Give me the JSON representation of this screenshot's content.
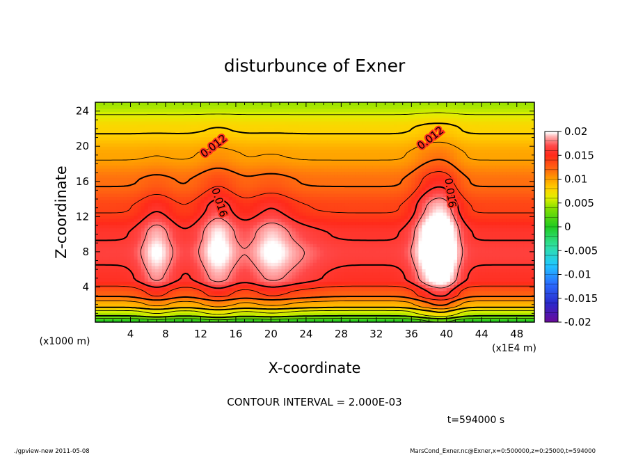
{
  "chart_data": {
    "type": "heatmap",
    "title": "disturbunce of Exner",
    "xlabel": "X-coordinate",
    "ylabel": "Z-coordinate",
    "x_unit_label": "(x1E4 m)",
    "y_unit_label": "(x1000 m)",
    "xlim": [
      0,
      50
    ],
    "ylim": [
      0,
      25
    ],
    "x_ticks": [
      4,
      8,
      12,
      16,
      20,
      24,
      28,
      32,
      36,
      40,
      44,
      48
    ],
    "y_ticks": [
      4,
      8,
      12,
      16,
      20,
      24
    ],
    "colorbar": {
      "min": -0.02,
      "max": 0.02,
      "ticks": [
        {
          "value": 0.02,
          "label": "0.02"
        },
        {
          "value": 0.015,
          "label": "0.015"
        },
        {
          "value": 0.01,
          "label": "0.01"
        },
        {
          "value": 0.005,
          "label": "0.005"
        },
        {
          "value": 0,
          "label": "0"
        },
        {
          "value": -0.005,
          "label": "-0.005"
        },
        {
          "value": -0.01,
          "label": "-0.01"
        },
        {
          "value": -0.015,
          "label": "-0.015"
        },
        {
          "value": -0.02,
          "label": "-0.02"
        }
      ],
      "stops": [
        {
          "value": -0.02,
          "color": "#6a0a9a"
        },
        {
          "value": -0.016,
          "color": "#2a2acc"
        },
        {
          "value": -0.012,
          "color": "#2a6cff"
        },
        {
          "value": -0.008,
          "color": "#20c8ff"
        },
        {
          "value": -0.004,
          "color": "#30e0a0"
        },
        {
          "value": 0.0,
          "color": "#20cc20"
        },
        {
          "value": 0.004,
          "color": "#88e000"
        },
        {
          "value": 0.006,
          "color": "#e0f000"
        },
        {
          "value": 0.008,
          "color": "#ffd200"
        },
        {
          "value": 0.01,
          "color": "#ffa000"
        },
        {
          "value": 0.012,
          "color": "#ff6a10"
        },
        {
          "value": 0.015,
          "color": "#ff2a1a"
        },
        {
          "value": 0.017,
          "color": "#ff4848"
        },
        {
          "value": 0.018,
          "color": "#ff8080"
        },
        {
          "value": 0.019,
          "color": "#ffb8b8"
        },
        {
          "value": 0.0198,
          "color": "#ffffff"
        }
      ]
    },
    "contour_interval": 0.002,
    "contour_labels": [
      {
        "text": "0.012",
        "x": 13.5,
        "z": 20.0,
        "angle": -38
      },
      {
        "text": "0.012",
        "x": 38.2,
        "z": 20.9,
        "angle": -38
      },
      {
        "text": "0.016",
        "x": 14.1,
        "z": 13.6,
        "angle": 72
      },
      {
        "text": "0.016",
        "x": 40.4,
        "z": 14.7,
        "angle": 82
      }
    ],
    "field_model": {
      "base_levels": [
        {
          "z": 0,
          "value": 0.0
        },
        {
          "z": 1,
          "value": 0.005
        },
        {
          "z": 2,
          "value": 0.009
        },
        {
          "z": 3.2,
          "value": 0.0125
        },
        {
          "z": 5,
          "value": 0.0155
        },
        {
          "z": 8,
          "value": 0.0165
        },
        {
          "z": 10,
          "value": 0.0158
        },
        {
          "z": 13,
          "value": 0.0138
        },
        {
          "z": 16,
          "value": 0.0118
        },
        {
          "z": 19,
          "value": 0.0098
        },
        {
          "z": 22,
          "value": 0.0078
        },
        {
          "z": 25,
          "value": 0.0045
        }
      ],
      "plumes": [
        {
          "x": 7,
          "z": 8,
          "amplitude": 0.0035,
          "sigma_x": 1.4,
          "sigma_z": 4.5
        },
        {
          "x": 14,
          "z": 9,
          "amplitude": 0.004,
          "sigma_x": 1.6,
          "sigma_z": 5.5
        },
        {
          "x": 20,
          "z": 8.5,
          "amplitude": 0.0035,
          "sigma_x": 1.8,
          "sigma_z": 4.5
        },
        {
          "x": 23.5,
          "z": 7,
          "amplitude": 0.0012,
          "sigma_x": 2,
          "sigma_z": 3
        },
        {
          "x": 38,
          "z": 9.5,
          "amplitude": 0.0045,
          "sigma_x": 1.4,
          "sigma_z": 6
        },
        {
          "x": 40,
          "z": 9,
          "amplitude": 0.0045,
          "sigma_x": 1.2,
          "sigma_z": 6
        }
      ]
    }
  },
  "annotations": {
    "contour_interval_text": "CONTOUR INTERVAL = 2.000E-03",
    "time_text": "t=594000 s",
    "footer_left": "./gpview-new  2011-05-08",
    "footer_right": "MarsCond_Exner.nc@Exner,x=0:500000,z=0:25000,t=594000"
  }
}
